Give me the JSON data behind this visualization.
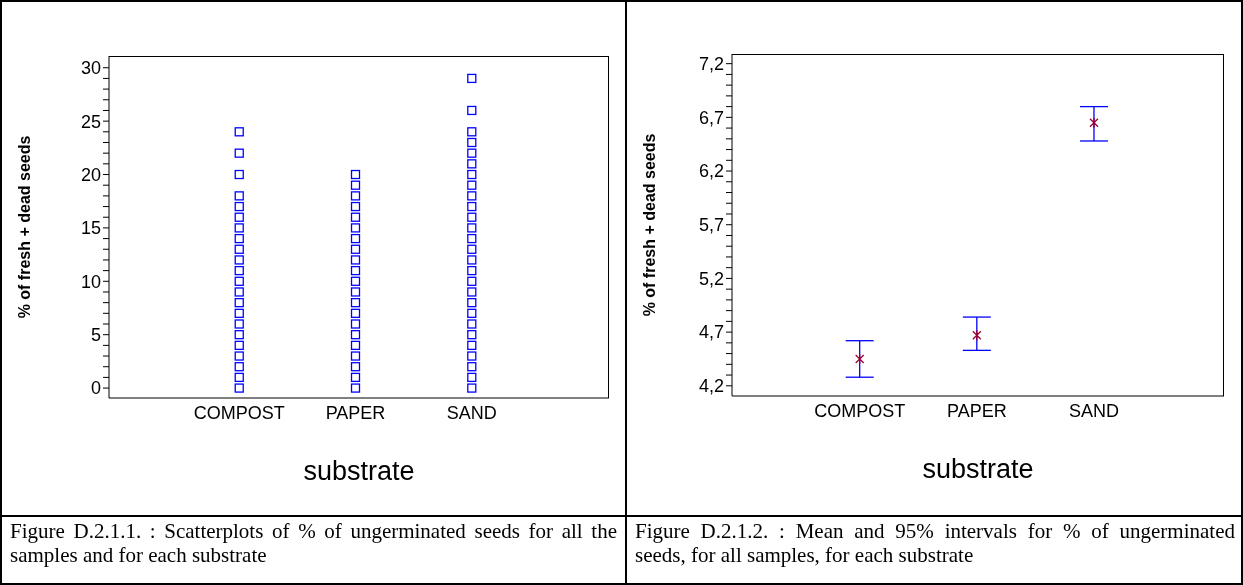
{
  "chart_data": [
    {
      "type": "scatter",
      "categories": [
        "COMPOST",
        "PAPER",
        "SAND"
      ],
      "xlabel": "substrate",
      "ylabel": "% of fresh + dead seeds",
      "marker": "square",
      "ylim": [
        -0.93,
        31.1
      ],
      "yticks": [
        0,
        {
          "value": 1,
          "label": null
        },
        {
          "value": 2,
          "label": null
        },
        {
          "value": 3,
          "label": null
        },
        {
          "value": 4,
          "label": null
        },
        5,
        {
          "value": 6,
          "label": null
        },
        {
          "value": 7,
          "label": null
        },
        {
          "value": 8,
          "label": null
        },
        {
          "value": 9,
          "label": null
        },
        10,
        {
          "value": 11,
          "label": null
        },
        {
          "value": 12,
          "label": null
        },
        {
          "value": 13,
          "label": null
        },
        {
          "value": 14,
          "label": null
        },
        15,
        {
          "value": 16,
          "label": null
        },
        {
          "value": 17,
          "label": null
        },
        {
          "value": 18,
          "label": null
        },
        {
          "value": 19,
          "label": null
        },
        20,
        {
          "value": 21,
          "label": null
        },
        {
          "value": 22,
          "label": null
        },
        {
          "value": 23,
          "label": null
        },
        {
          "value": 24,
          "label": null
        },
        25,
        {
          "value": 26,
          "label": null
        },
        {
          "value": 27,
          "label": null
        },
        {
          "value": 28,
          "label": null
        },
        {
          "value": 29,
          "label": null
        },
        30
      ],
      "series": [
        {
          "color": "#0000ff",
          "x": [
            "COMPOST",
            "COMPOST",
            "COMPOST",
            "COMPOST",
            "COMPOST",
            "COMPOST",
            "COMPOST",
            "COMPOST",
            "COMPOST",
            "COMPOST",
            "COMPOST",
            "COMPOST",
            "COMPOST",
            "COMPOST",
            "COMPOST",
            "COMPOST",
            "COMPOST",
            "COMPOST",
            "COMPOST",
            "COMPOST",
            "COMPOST",
            "COMPOST"
          ],
          "values": [
            0,
            1,
            2,
            3,
            4,
            5,
            6,
            7,
            8,
            9,
            10,
            11,
            12,
            13,
            14,
            15,
            16,
            17,
            18,
            20,
            22,
            24
          ]
        },
        {
          "color": "#0000ff",
          "x": [
            "PAPER",
            "PAPER",
            "PAPER",
            "PAPER",
            "PAPER",
            "PAPER",
            "PAPER",
            "PAPER",
            "PAPER",
            "PAPER",
            "PAPER",
            "PAPER",
            "PAPER",
            "PAPER",
            "PAPER",
            "PAPER",
            "PAPER",
            "PAPER",
            "PAPER",
            "PAPER",
            "PAPER"
          ],
          "values": [
            0,
            1,
            2,
            3,
            4,
            5,
            6,
            7,
            8,
            9,
            10,
            11,
            12,
            13,
            14,
            15,
            16,
            17,
            18,
            19,
            20
          ]
        },
        {
          "color": "#0000ff",
          "x": [
            "SAND",
            "SAND",
            "SAND",
            "SAND",
            "SAND",
            "SAND",
            "SAND",
            "SAND",
            "SAND",
            "SAND",
            "SAND",
            "SAND",
            "SAND",
            "SAND",
            "SAND",
            "SAND",
            "SAND",
            "SAND",
            "SAND",
            "SAND",
            "SAND",
            "SAND",
            "SAND",
            "SAND",
            "SAND",
            "SAND",
            "SAND"
          ],
          "values": [
            0,
            1,
            2,
            3,
            4,
            5,
            6,
            7,
            8,
            9,
            10,
            11,
            12,
            13,
            14,
            15,
            16,
            17,
            18,
            19,
            20,
            21,
            22,
            23,
            24,
            26,
            29
          ]
        }
      ],
      "annotations": [
        "Figure D.2.1.1. : Scatterplots of % of ungerminated seeds for all the samples and for each substrate"
      ]
    },
    {
      "type": "scatter",
      "categories": [
        "COMPOST",
        "PAPER",
        "SAND"
      ],
      "xlabel": "substrate",
      "ylabel": "% of fresh + dead seeds",
      "marker": "cross",
      "ylim": [
        4.105,
        7.29
      ],
      "yticks": [
        {
          "value": 4.2,
          "label": "4,2"
        },
        {
          "value": 4.3,
          "label": null
        },
        {
          "value": 4.4,
          "label": null
        },
        {
          "value": 4.5,
          "label": null
        },
        {
          "value": 4.6,
          "label": null
        },
        {
          "value": 4.7,
          "label": "4,7"
        },
        {
          "value": 4.8,
          "label": null
        },
        {
          "value": 4.9,
          "label": null
        },
        {
          "value": 5.0,
          "label": null
        },
        {
          "value": 5.1,
          "label": null
        },
        {
          "value": 5.2,
          "label": "5,2"
        },
        {
          "value": 5.3,
          "label": null
        },
        {
          "value": 5.4,
          "label": null
        },
        {
          "value": 5.5,
          "label": null
        },
        {
          "value": 5.6,
          "label": null
        },
        {
          "value": 5.7,
          "label": "5,7"
        },
        {
          "value": 5.8,
          "label": null
        },
        {
          "value": 5.9,
          "label": null
        },
        {
          "value": 6.0,
          "label": null
        },
        {
          "value": 6.1,
          "label": null
        },
        {
          "value": 6.2,
          "label": "6,2"
        },
        {
          "value": 6.3,
          "label": null
        },
        {
          "value": 6.4,
          "label": null
        },
        {
          "value": 6.5,
          "label": null
        },
        {
          "value": 6.6,
          "label": null
        },
        {
          "value": 6.7,
          "label": "6,7"
        },
        {
          "value": 6.8,
          "label": null
        },
        {
          "value": 6.9,
          "label": null
        },
        {
          "value": 7.0,
          "label": null
        },
        {
          "value": 7.1,
          "label": null
        },
        {
          "value": 7.2,
          "label": "7,2"
        }
      ],
      "series": [
        {
          "color": "#990033",
          "x": [
            "COMPOST",
            "PAPER",
            "SAND"
          ],
          "values": [
            4.45,
            4.67,
            6.65
          ],
          "errors": [
            [
              4.28,
              4.62
            ],
            [
              4.53,
              4.84
            ],
            [
              6.48,
              6.8
            ]
          ]
        }
      ],
      "annotations": [
        "Figure D.2.1.2. : Mean and 95% intervals for % of ungerminated seeds, for all samples, for each substrate"
      ]
    }
  ]
}
